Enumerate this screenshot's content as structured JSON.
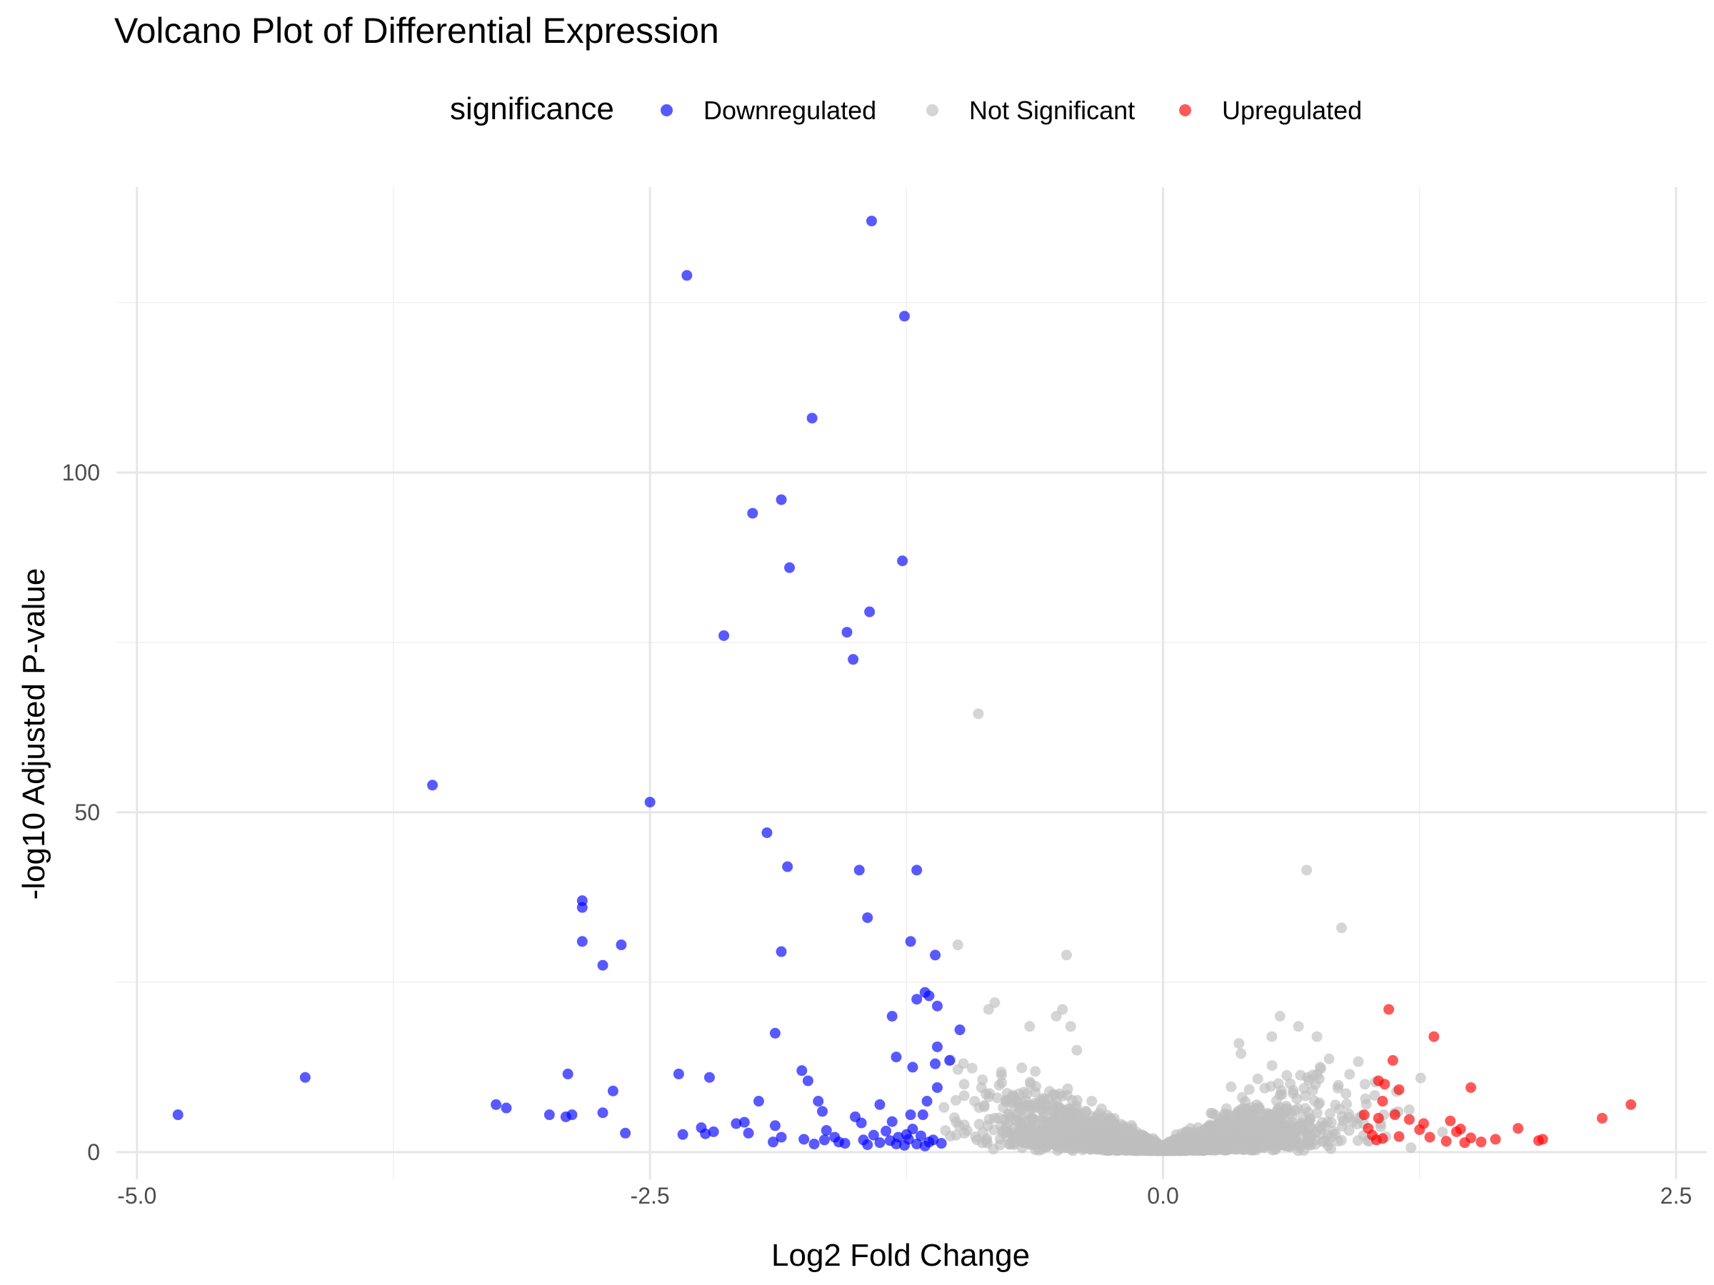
{
  "chart_data": {
    "type": "scatter",
    "title": "Volcano Plot of Differential Expression",
    "xlabel": "Log2 Fold Change",
    "ylabel": "-log10 Adjusted P-value",
    "xlim": [
      -5.1,
      2.65
    ],
    "ylim": [
      -4,
      142
    ],
    "x_ticks": [
      -5.0,
      -2.5,
      0.0,
      2.5
    ],
    "x_tick_labels": [
      "-5.0",
      "-2.5",
      "0.0",
      "2.5"
    ],
    "y_ticks": [
      0,
      50,
      100
    ],
    "y_tick_labels": [
      "0",
      "50",
      "100"
    ],
    "grid": true,
    "legend": {
      "title": "significance",
      "position": "top",
      "entries": [
        "Downregulated",
        "Not Significant",
        "Upregulated"
      ]
    },
    "colors": {
      "Downregulated": "#0000ff",
      "Not Significant": "#bebebe",
      "Upregulated": "#ff0000"
    },
    "series": [
      {
        "name": "Downregulated",
        "points": [
          [
            -1.42,
            137
          ],
          [
            -2.32,
            129
          ],
          [
            -1.26,
            123
          ],
          [
            -1.71,
            108
          ],
          [
            -1.86,
            96
          ],
          [
            -2.0,
            94
          ],
          [
            -1.82,
            86
          ],
          [
            -1.27,
            87
          ],
          [
            -1.43,
            79.5
          ],
          [
            -2.14,
            76
          ],
          [
            -1.54,
            76.5
          ],
          [
            -1.51,
            72.5
          ],
          [
            -3.56,
            54
          ],
          [
            -2.5,
            51.5
          ],
          [
            -1.93,
            47
          ],
          [
            -1.83,
            42
          ],
          [
            -1.48,
            41.5
          ],
          [
            -1.2,
            41.5
          ],
          [
            -2.83,
            37
          ],
          [
            -2.83,
            36
          ],
          [
            -1.44,
            34.5
          ],
          [
            -2.83,
            31
          ],
          [
            -2.64,
            30.5
          ],
          [
            -1.86,
            29.5
          ],
          [
            -1.11,
            29
          ],
          [
            -1.23,
            31
          ],
          [
            -2.73,
            27.5
          ],
          [
            -1.16,
            23.5
          ],
          [
            -1.14,
            23
          ],
          [
            -1.2,
            22.5
          ],
          [
            -1.1,
            21.5
          ],
          [
            -1.32,
            20
          ],
          [
            -0.99,
            18
          ],
          [
            -1.89,
            17.5
          ],
          [
            -1.1,
            15.5
          ],
          [
            -1.3,
            14
          ],
          [
            -1.04,
            13.5
          ],
          [
            -1.11,
            13
          ],
          [
            -1.22,
            12.5
          ],
          [
            -4.18,
            11
          ],
          [
            -2.9,
            11.5
          ],
          [
            -2.36,
            11.5
          ],
          [
            -1.76,
            12
          ],
          [
            -2.21,
            11
          ],
          [
            -1.73,
            10.5
          ],
          [
            -1.1,
            9.5
          ],
          [
            -2.68,
            9
          ],
          [
            -1.97,
            7.5
          ],
          [
            -3.25,
            7
          ],
          [
            -3.2,
            6.5
          ],
          [
            -1.68,
            7.5
          ],
          [
            -1.38,
            7
          ],
          [
            -1.15,
            7.5
          ],
          [
            -4.8,
            5.5
          ],
          [
            -2.99,
            5.5
          ],
          [
            -2.88,
            5.5
          ],
          [
            -2.91,
            5.2
          ],
          [
            -2.73,
            5.8
          ],
          [
            -1.17,
            5.5
          ],
          [
            -1.23,
            5.5
          ],
          [
            -1.5,
            5.2
          ],
          [
            -1.66,
            6
          ],
          [
            -1.32,
            4.5
          ],
          [
            -1.47,
            4.3
          ],
          [
            -2.08,
            4.2
          ],
          [
            -2.04,
            4.4
          ],
          [
            -1.89,
            3.9
          ],
          [
            -2.25,
            3.6
          ],
          [
            -2.19,
            3
          ],
          [
            -2.02,
            2.8
          ],
          [
            -1.64,
            3.2
          ],
          [
            -1.35,
            3.1
          ],
          [
            -1.22,
            3.4
          ],
          [
            -2.62,
            2.8
          ],
          [
            -2.34,
            2.6
          ],
          [
            -2.23,
            2.7
          ],
          [
            -1.41,
            2.5
          ],
          [
            -1.25,
            2.6
          ],
          [
            -1.86,
            2.2
          ],
          [
            -1.6,
            2.2
          ],
          [
            -1.75,
            1.9
          ],
          [
            -1.65,
            1.8
          ],
          [
            -1.9,
            1.5
          ],
          [
            -1.58,
            1.5
          ],
          [
            -1.46,
            1.8
          ],
          [
            -1.33,
            1.7
          ],
          [
            -1.12,
            1.8
          ],
          [
            -1.7,
            1.2
          ],
          [
            -1.55,
            1.3
          ],
          [
            -1.44,
            1.1
          ],
          [
            -1.38,
            1.4
          ],
          [
            -1.3,
            1.2
          ],
          [
            -1.26,
            1.0
          ],
          [
            -1.2,
            1.2
          ],
          [
            -1.16,
            0.9
          ],
          [
            -1.08,
            1.3
          ],
          [
            -1.29,
            2.2
          ],
          [
            -1.24,
            1.9
          ],
          [
            -1.18,
            2.4
          ],
          [
            -1.14,
            1.5
          ]
        ]
      },
      {
        "name": "Upregulated",
        "points": [
          [
            1.1,
            21
          ],
          [
            1.32,
            17
          ],
          [
            1.12,
            13.5
          ],
          [
            1.5,
            9.5
          ],
          [
            1.05,
            10.5
          ],
          [
            1.08,
            10
          ],
          [
            1.15,
            9.2
          ],
          [
            1.07,
            7.5
          ],
          [
            0.98,
            5.5
          ],
          [
            1.05,
            5
          ],
          [
            1.13,
            5.5
          ],
          [
            1.2,
            4.8
          ],
          [
            1.27,
            4.2
          ],
          [
            1.4,
            4.6
          ],
          [
            2.14,
            5
          ],
          [
            2.28,
            7
          ],
          [
            1.0,
            3.5
          ],
          [
            1.25,
            3.3
          ],
          [
            1.43,
            3
          ],
          [
            1.45,
            3.4
          ],
          [
            1.73,
            3.5
          ],
          [
            1.02,
            2.5
          ],
          [
            1.07,
            2
          ],
          [
            1.15,
            2.3
          ],
          [
            1.3,
            2.2
          ],
          [
            1.5,
            2.1
          ],
          [
            1.62,
            1.9
          ],
          [
            1.83,
            1.7
          ],
          [
            1.85,
            1.9
          ],
          [
            1.38,
            1.6
          ],
          [
            1.47,
            1.4
          ],
          [
            1.55,
            1.5
          ],
          [
            1.04,
            1.8
          ]
        ]
      },
      {
        "name": "Not Significant",
        "highlight_points": [
          [
            -0.9,
            64.5
          ],
          [
            0.7,
            41.5
          ],
          [
            0.87,
            33
          ],
          [
            -0.47,
            29
          ],
          [
            -1.0,
            30.5
          ],
          [
            -0.82,
            22
          ],
          [
            -0.85,
            21
          ],
          [
            -0.49,
            21
          ],
          [
            -0.52,
            20
          ],
          [
            0.57,
            20
          ],
          [
            -0.45,
            18.5
          ],
          [
            -0.65,
            18.5
          ],
          [
            0.66,
            18.5
          ],
          [
            0.75,
            17
          ],
          [
            0.53,
            17
          ],
          [
            -0.42,
            15
          ],
          [
            0.37,
            16
          ],
          [
            0.38,
            14.5
          ]
        ],
        "distribution": {
          "description": "dense cloud centered on x=0 forming a V shape",
          "x_range": [
            -1.1,
            1.45
          ],
          "y_range": [
            0,
            14
          ],
          "approx_count": 2600
        }
      }
    ]
  }
}
